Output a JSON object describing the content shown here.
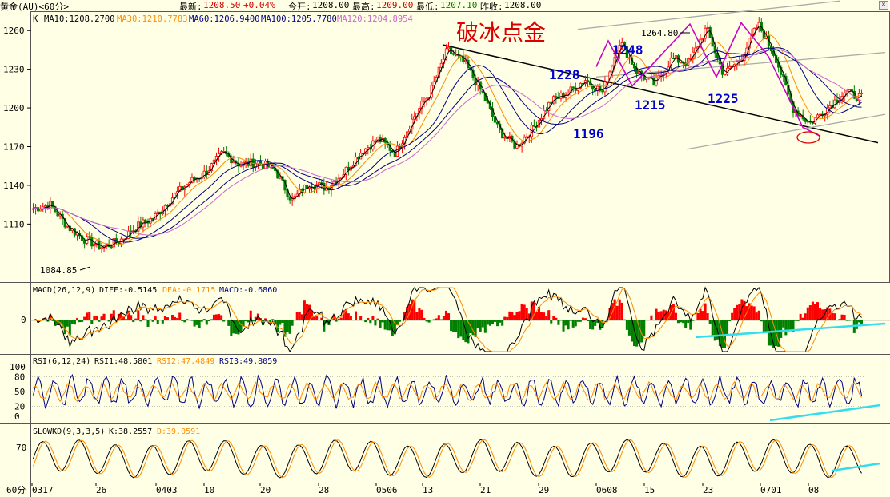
{
  "topbar": {
    "instrument": "黄金(AU)<60分>",
    "latest_label": "最新:",
    "latest": "1208.50",
    "change": "+0.04%",
    "open_label": "今开:",
    "open": "1208.00",
    "high_label": "最高:",
    "high": "1209.00",
    "low_label": "最低:",
    "low": "1207.10",
    "prev_close_label": "昨收:",
    "prev_close": "1208.00"
  },
  "main_panel": {
    "indicator_prefix": "K",
    "ma_labels": [
      {
        "text": "MA10:1208.2700",
        "color": "#000000"
      },
      {
        "text": "MA30:1210.7783",
        "color": "#ff8c00"
      },
      {
        "text": "MA60:1206.9400",
        "color": "#000080"
      },
      {
        "text": "MA100:1205.7780",
        "color": "#000080"
      },
      {
        "text": "MA120:1204.8954",
        "color": "#cc66cc"
      }
    ],
    "annotation_title": "破冰点金",
    "price_labels": [
      "1248",
      "1228",
      "1215",
      "1225",
      "1196"
    ],
    "peak_label": "1264.80",
    "low_label": "1084.85"
  },
  "macd_panel": {
    "label": "MACD(26,12,9)",
    "diff": "DIFF:-0.5145",
    "dea": "DEA:-0.1715",
    "macd": "MACD:-0.6860",
    "zero_tick": "0"
  },
  "rsi_panel": {
    "label": "RSI(6,12,24)",
    "rsi1": "RSI1:48.5801",
    "rsi2": "RSI2:47.4849",
    "rsi3": "RSI3:49.8059",
    "ticks": [
      "100",
      "80",
      "50",
      "20",
      "0"
    ]
  },
  "kd_panel": {
    "label": "SLOWKD(9,3,3,5)",
    "k": "K:38.2557",
    "d": "D:39.0591",
    "tick": "70"
  },
  "x_axis": {
    "period": "60分",
    "ticks": [
      "0317",
      "26",
      "0403",
      "10",
      "20",
      "28",
      "0506",
      "13",
      "21",
      "29",
      "0608",
      "15",
      "23",
      "0701",
      "08"
    ]
  },
  "colors": {
    "up": "#ff0000",
    "down": "#008000",
    "ma10": "#000000",
    "ma30": "#ff8c00",
    "ma60": "#000080",
    "ma120": "#cc66cc",
    "trend": "#000000",
    "channel": "#aaaaaa",
    "zigzag": "#cc00cc",
    "divergence": "#33ddee",
    "annotation": "#dd0000",
    "price_note": "#0000cc"
  },
  "chart_data": {
    "type": "line",
    "title": "破冰点金",
    "x": [
      "0317",
      "26",
      "0403",
      "10",
      "20",
      "28",
      "0506",
      "13",
      "21",
      "29",
      "0608",
      "15",
      "23",
      "0701",
      "08"
    ],
    "ylim": [
      1065,
      1275
    ],
    "yticks": [
      1110,
      1140,
      1170,
      1200,
      1230,
      1260
    ],
    "series": [
      {
        "name": "K",
        "points": [
          [
            "0317",
            1122
          ],
          [
            "0317",
            1125
          ],
          [
            "0317",
            1108
          ],
          [
            "26",
            1098
          ],
          [
            "26",
            1092
          ],
          [
            "26",
            1097
          ],
          [
            "26",
            1108
          ],
          [
            "0403",
            1115
          ],
          [
            "0403",
            1130
          ],
          [
            "0403",
            1142
          ],
          [
            "10",
            1150
          ],
          [
            "10",
            1165
          ],
          [
            "10",
            1156
          ],
          [
            "10",
            1158
          ],
          [
            "20",
            1152
          ],
          [
            "20",
            1128
          ],
          [
            "20",
            1142
          ],
          [
            "28",
            1138
          ],
          [
            "28",
            1150
          ],
          [
            "28",
            1166
          ],
          [
            "0506",
            1176
          ],
          [
            "0506",
            1165
          ],
          [
            "0506",
            1192
          ],
          [
            "13",
            1212
          ],
          [
            "13",
            1245
          ],
          [
            "13",
            1235
          ],
          [
            "13",
            1212
          ],
          [
            "21",
            1182
          ],
          [
            "21",
            1170
          ],
          [
            "21",
            1185
          ],
          [
            "29",
            1205
          ],
          [
            "29",
            1212
          ],
          [
            "29",
            1222
          ],
          [
            "0608",
            1212
          ],
          [
            "0608",
            1252
          ],
          [
            "0608",
            1228
          ],
          [
            "15",
            1218
          ],
          [
            "15",
            1238
          ],
          [
            "15",
            1235
          ],
          [
            "23",
            1262
          ],
          [
            "23",
            1226
          ],
          [
            "23",
            1238
          ],
          [
            "23",
            1265
          ],
          [
            "0701",
            1240
          ],
          [
            "0701",
            1200
          ],
          [
            "0701",
            1188
          ],
          [
            "08",
            1200
          ],
          [
            "08",
            1212
          ],
          [
            "08",
            1208
          ]
        ]
      }
    ],
    "annotations": [
      {
        "text": "1264.80",
        "x": "23",
        "y": 1264.8
      },
      {
        "text": "1248",
        "x": "0608",
        "y": 1248
      },
      {
        "text": "1228",
        "x": "29",
        "y": 1228
      },
      {
        "text": "1215",
        "x": "15",
        "y": 1215
      },
      {
        "text": "1225",
        "x": "23",
        "y": 1225
      },
      {
        "text": "1196",
        "x": "29",
        "y": 1196
      },
      {
        "text": "1084.85",
        "x": "26",
        "y": 1084.85
      }
    ],
    "panels": [
      {
        "name": "MACD(26,12,9)",
        "values": {
          "DIFF": -0.5145,
          "DEA": -0.1715,
          "MACD": -0.686
        }
      },
      {
        "name": "RSI(6,12,24)",
        "values": {
          "RSI1": 48.5801,
          "RSI2": 47.4849,
          "RSI3": 49.8059
        },
        "ylim": [
          0,
          100
        ]
      },
      {
        "name": "SLOWKD(9,3,3,5)",
        "values": {
          "K": 38.2557,
          "D": 39.0591
        }
      }
    ]
  }
}
